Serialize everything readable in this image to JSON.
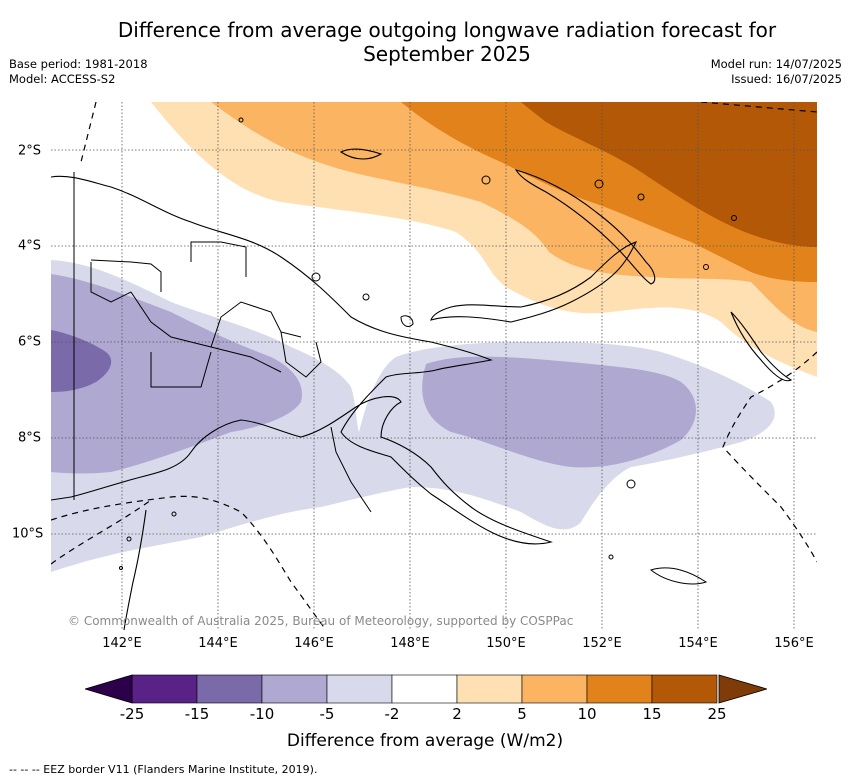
{
  "title_line1": "Difference from average outgoing longwave radiation forecast for",
  "title_line2": "September 2025",
  "meta_left": [
    "Base period: 1981-2018",
    "Model: ACCESS-S2"
  ],
  "meta_right": [
    "Model run: 14/07/2025",
    "Issued: 16/07/2025"
  ],
  "map": {
    "lon_range": [
      140.5,
      156.5
    ],
    "lat_range": [
      -12.0,
      -1.0
    ],
    "lon_labels": [
      "142°E",
      "144°E",
      "146°E",
      "148°E",
      "150°E",
      "152°E",
      "154°E",
      "156°E"
    ],
    "lat_labels": [
      "2°S",
      "4°S",
      "6°S",
      "8°S",
      "10°S"
    ],
    "copyright": "© Commonwealth of Australia 2025, Bureau of Meteorology, supported by COSPPac"
  },
  "colorbar": {
    "ticks": [
      "-25",
      "-15",
      "-10",
      "-5",
      "-2",
      "2",
      "5",
      "10",
      "15",
      "25"
    ],
    "colors": [
      "#582287",
      "#7b6aa9",
      "#afa8d1",
      "#d8d9ea",
      "#ffffff",
      "#fee0b3",
      "#fbb462",
      "#e2821a",
      "#b35806"
    ],
    "extend_low_color": "#2d004b",
    "extend_high_color": "#7f3b08",
    "label": "Difference from average (W/m2)"
  },
  "footnote": "-- -- -- EEZ border V11 (Flanders Marine Institute, 2019)."
}
